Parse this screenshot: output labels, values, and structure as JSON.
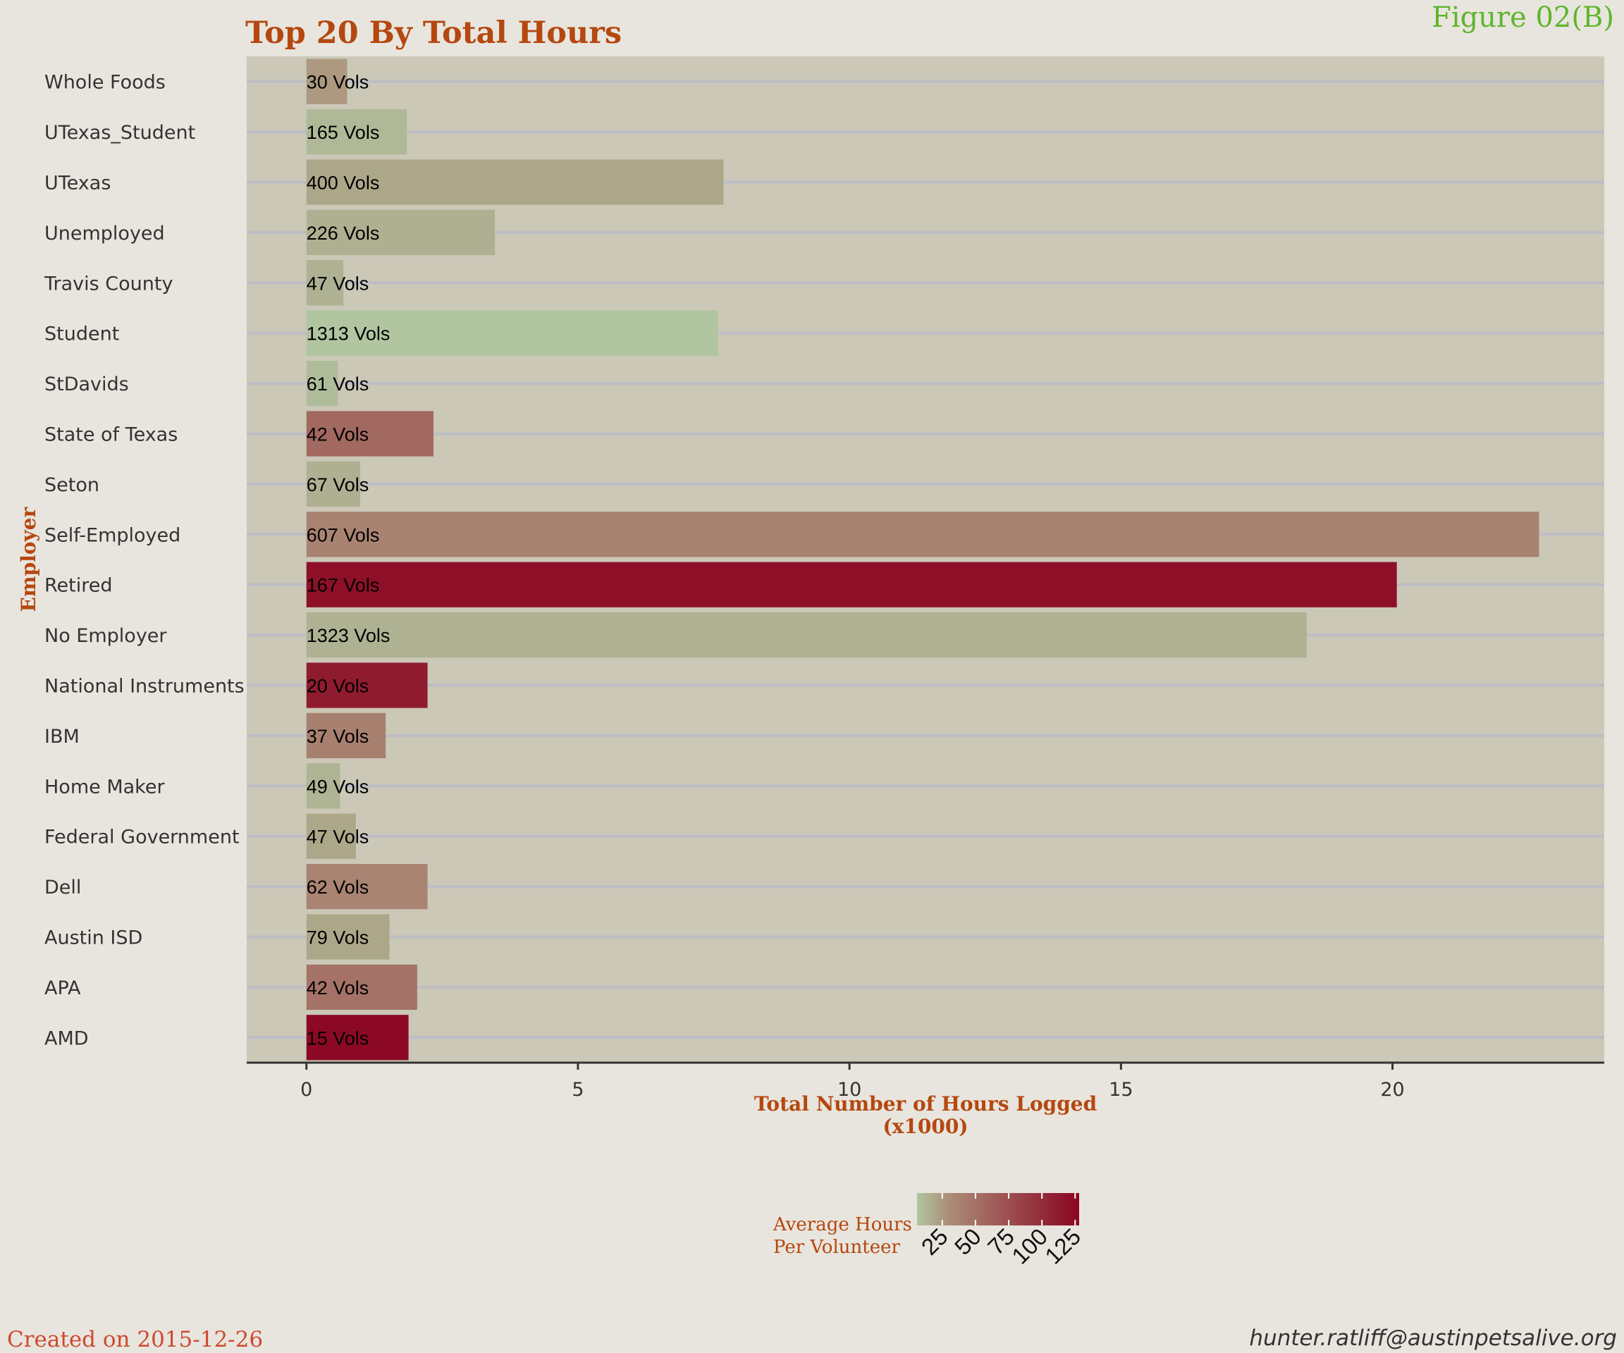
{
  "figure_label": "Figure 02(B)",
  "created_on": "Created on 2015-12-26",
  "author_email": "hunter.ratliff@austinpetsalive.org",
  "colors": {
    "background": "#e8e5de",
    "panel": "#cbc8b8",
    "gridline": "#bdbdc4",
    "accent": "#b5470f",
    "figure_label": "#5fb52b",
    "created_on": "#d0482e",
    "bar_text": "#000000"
  },
  "chart_data": {
    "type": "bar",
    "orientation": "horizontal",
    "title": "Top 20 By Total Hours",
    "xlabel": "Total Number of Hours Logged\n(x1000)",
    "ylabel": "Employer",
    "xlim": [
      -1.1,
      23.9
    ],
    "xticks": [
      0,
      5,
      10,
      15,
      20
    ],
    "grid": true,
    "categories": [
      "Whole Foods",
      "UTexas_Student",
      "UTexas",
      "Unemployed",
      "Travis County",
      "Student",
      "StDavids",
      "State of Texas",
      "Seton",
      "Self-Employed",
      "Retired",
      "No Employer",
      "National Instruments",
      "IBM",
      "Home Maker",
      "Federal Government",
      "Dell",
      "Austin ISD",
      "APA",
      "AMD"
    ],
    "values": [
      0.75,
      1.85,
      7.68,
      3.47,
      0.68,
      7.58,
      0.58,
      2.34,
      0.99,
      22.7,
      20.08,
      18.42,
      2.23,
      1.46,
      0.62,
      0.91,
      2.23,
      1.53,
      2.04,
      1.88
    ],
    "labels": [
      "30 Vols",
      "165 Vols",
      "400 Vols",
      "226 Vols",
      "47 Vols",
      "1313 Vols",
      "61 Vols",
      "42 Vols",
      "67 Vols",
      "607 Vols",
      "167 Vols",
      "1323 Vols",
      "20 Vols",
      "37 Vols",
      "49 Vols",
      "47 Vols",
      "62 Vols",
      "79 Vols",
      "42 Vols",
      "15 Vols"
    ],
    "volunteers": [
      30,
      165,
      400,
      226,
      47,
      1313,
      61,
      42,
      67,
      607,
      167,
      1323,
      20,
      37,
      49,
      47,
      62,
      79,
      42,
      15
    ],
    "color_values": [
      25,
      11,
      19,
      15,
      14,
      6,
      10,
      56,
      15,
      37,
      120,
      14,
      112,
      39,
      13,
      19,
      36,
      19,
      49,
      125
    ],
    "legend": {
      "title": "Average Hours\nPer Volunteer",
      "ticks": [
        "25",
        "50",
        "75",
        "100",
        "125"
      ],
      "tick_values": [
        25,
        50,
        75,
        100,
        125
      ],
      "range": [
        6,
        128
      ],
      "low_color": "#b0c5a0",
      "mid_color": "#ab8c77",
      "high_color": "#8a0521",
      "position": "bottom"
    }
  }
}
